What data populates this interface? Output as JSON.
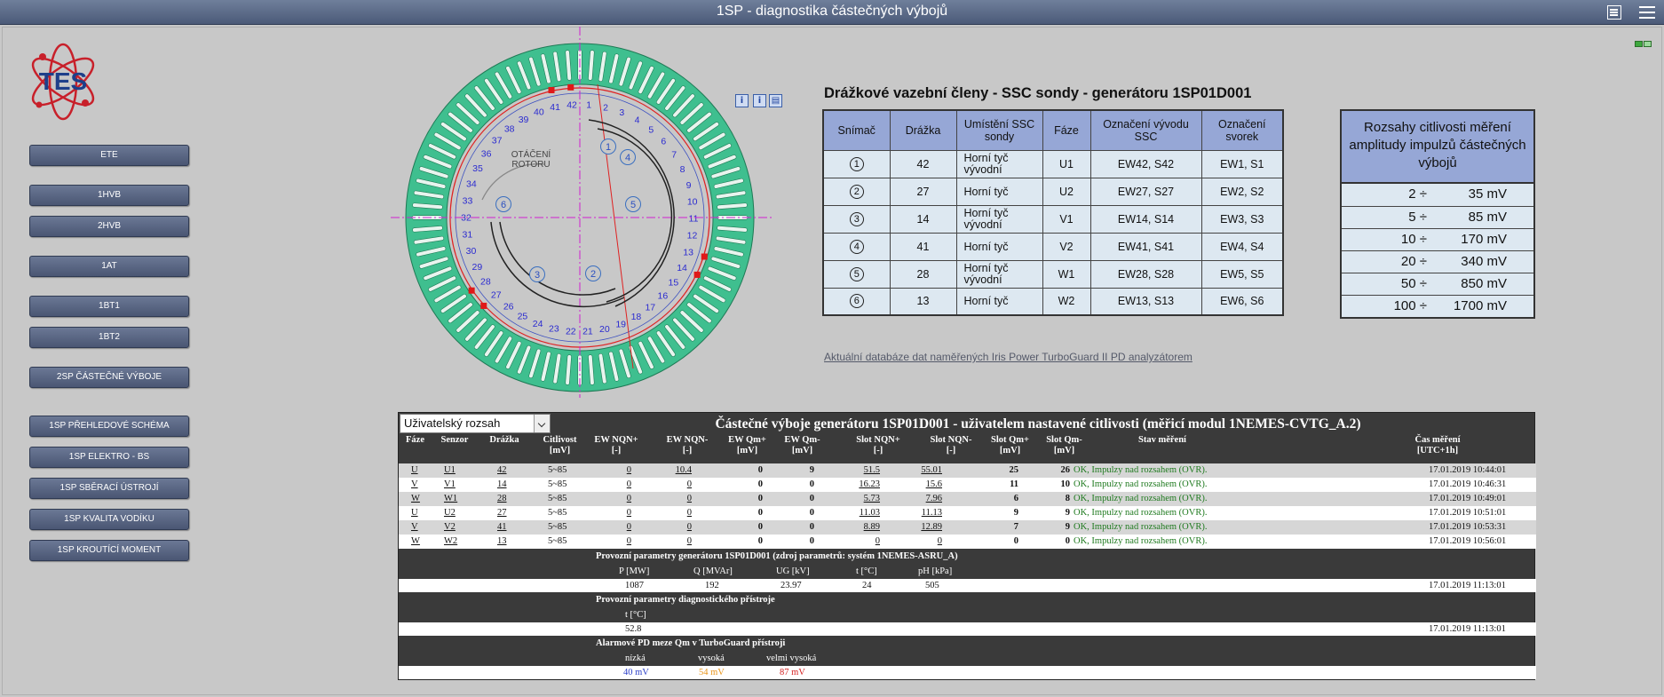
{
  "window": {
    "title": "1SP - diagnostika částečných výbojů"
  },
  "logo": {
    "text": "TES"
  },
  "nav": [
    {
      "label": "ETE"
    },
    {
      "label": "1HVB"
    },
    {
      "label": "2HVB"
    },
    {
      "label": "1AT"
    },
    {
      "label": "1BT1"
    },
    {
      "label": "1BT2"
    },
    {
      "label": "2SP ČÁSTEČNÉ VÝBOJE"
    },
    {
      "label": "1SP PŘEHLEDOVÉ SCHÉMA"
    },
    {
      "label": "1SP ELEKTRO - BS"
    },
    {
      "label": "1SP SBĚRACÍ ÚSTROJÍ"
    },
    {
      "label": "1SP KVALITA VODÍKU"
    },
    {
      "label": "1SP KROUTÍCÍ MOMENT"
    }
  ],
  "diagram": {
    "rotation_label_1": "OTÁČENÍ",
    "rotation_label_2": "ROTORU",
    "slot_count": 42,
    "sensors": [
      {
        "id": "1",
        "slot": 42
      },
      {
        "id": "2",
        "slot": 27
      },
      {
        "id": "3",
        "slot": 14
      },
      {
        "id": "4",
        "slot": 41
      },
      {
        "id": "5",
        "slot": 28
      },
      {
        "id": "6",
        "slot": 13
      }
    ],
    "info_buttons": [
      "i",
      "i",
      "▤"
    ]
  },
  "ssc": {
    "title": "Drážkové vazební členy - SSC sondy - generátoru 1SP01D001",
    "headers": [
      "Snímač",
      "Drážka",
      "Umístění SSC sondy",
      "Fáze",
      "Označení vývodu SSC",
      "Označení svorek"
    ],
    "rows": [
      {
        "sensor": "1",
        "slot": "42",
        "location": "Horní tyč vývodní",
        "phase": "U1",
        "lead": "EW42, S42",
        "terminal": "EW1, S1"
      },
      {
        "sensor": "2",
        "slot": "27",
        "location": "Horní tyč",
        "phase": "U2",
        "lead": "EW27, S27",
        "terminal": "EW2, S2"
      },
      {
        "sensor": "3",
        "slot": "14",
        "location": "Horní tyč vývodní",
        "phase": "V1",
        "lead": "EW14, S14",
        "terminal": "EW3, S3"
      },
      {
        "sensor": "4",
        "slot": "41",
        "location": "Horní tyč",
        "phase": "V2",
        "lead": "EW41, S41",
        "terminal": "EW4, S4"
      },
      {
        "sensor": "5",
        "slot": "28",
        "location": "Horní tyč vývodní",
        "phase": "W1",
        "lead": "EW28, S28",
        "terminal": "EW5, S5"
      },
      {
        "sensor": "6",
        "slot": "13",
        "location": "Horní tyč",
        "phase": "W2",
        "lead": "EW13, S13",
        "terminal": "EW6, S6"
      }
    ]
  },
  "ranges": {
    "header": "Rozsahy citlivosti měření amplitudy impulzů částečných výbojů",
    "rows": [
      {
        "from": "2 ÷",
        "to": "35 mV"
      },
      {
        "from": "5 ÷",
        "to": "85 mV"
      },
      {
        "from": "10 ÷",
        "to": "170 mV"
      },
      {
        "from": "20 ÷",
        "to": "340 mV"
      },
      {
        "from": "50 ÷",
        "to": "850 mV"
      },
      {
        "from": "100 ÷",
        "to": "1700 mV"
      }
    ]
  },
  "db_link": "Aktuální databáze dat naměřených Iris Power TurboGuard II PD analyzátorem",
  "measure": {
    "select_value": "Uživatelský rozsah",
    "title": "Částečné výboje generátoru 1SP01D001 - uživatelem nastavené citlivosti (měřicí modul 1NEMES-CVTG_A.2)",
    "headers": [
      {
        "l1": "Fáze",
        "l2": ""
      },
      {
        "l1": "Senzor",
        "l2": ""
      },
      {
        "l1": "Drážka",
        "l2": ""
      },
      {
        "l1": "Citlivost",
        "l2": "[mV]"
      },
      {
        "l1": "EW NQN+",
        "l2": "[-]"
      },
      {
        "l1": "EW NQN-",
        "l2": "[-]"
      },
      {
        "l1": "EW Qm+",
        "l2": "[mV]"
      },
      {
        "l1": "EW Qm-",
        "l2": "[mV]"
      },
      {
        "l1": "Slot NQN+",
        "l2": "[-]"
      },
      {
        "l1": "Slot NQN-",
        "l2": "[-]"
      },
      {
        "l1": "Slot Qm+",
        "l2": "[mV]"
      },
      {
        "l1": "Slot Qm-",
        "l2": "[mV]"
      },
      {
        "l1": "Stav měření",
        "l2": ""
      },
      {
        "l1": "Čas měření",
        "l2": "[UTC+1h]"
      }
    ],
    "rows": [
      {
        "phase": "U",
        "sensor": "U1",
        "slot": "42",
        "sens": "5~85",
        "ewp": "0",
        "ewn": "10.4",
        "ewqp": "0",
        "ewqn": "9",
        "snp": "51.5",
        "snn": "55.01",
        "sqp": "25",
        "sqn": "26",
        "status": "OK, Impulzy nad rozsahem (OVR).",
        "time": "17.01.2019 10:44:01"
      },
      {
        "phase": "V",
        "sensor": "V1",
        "slot": "14",
        "sens": "5~85",
        "ewp": "0",
        "ewn": "0",
        "ewqp": "0",
        "ewqn": "0",
        "snp": "16.23",
        "snn": "15.6",
        "sqp": "11",
        "sqn": "10",
        "status": "OK, Impulzy nad rozsahem (OVR).",
        "time": "17.01.2019 10:46:31"
      },
      {
        "phase": "W",
        "sensor": "W1",
        "slot": "28",
        "sens": "5~85",
        "ewp": "0",
        "ewn": "0",
        "ewqp": "0",
        "ewqn": "0",
        "snp": "5.73",
        "snn": "7.96",
        "sqp": "6",
        "sqn": "8",
        "status": "OK, Impulzy nad rozsahem (OVR).",
        "time": "17.01.2019 10:49:01"
      },
      {
        "phase": "U",
        "sensor": "U2",
        "slot": "27",
        "sens": "5~85",
        "ewp": "0",
        "ewn": "0",
        "ewqp": "0",
        "ewqn": "0",
        "snp": "11.03",
        "snn": "11.13",
        "sqp": "9",
        "sqn": "9",
        "status": "OK, Impulzy nad rozsahem (OVR).",
        "time": "17.01.2019 10:51:01"
      },
      {
        "phase": "V",
        "sensor": "V2",
        "slot": "41",
        "sens": "5~85",
        "ewp": "0",
        "ewn": "0",
        "ewqp": "0",
        "ewqn": "0",
        "snp": "8.89",
        "snn": "12.89",
        "sqp": "7",
        "sqn": "9",
        "status": "OK, Impulzy nad rozsahem (OVR).",
        "time": "17.01.2019 10:53:31"
      },
      {
        "phase": "W",
        "sensor": "W2",
        "slot": "13",
        "sens": "5~85",
        "ewp": "0",
        "ewn": "0",
        "ewqp": "0",
        "ewqn": "0",
        "snp": "0",
        "snn": "0",
        "sqp": "0",
        "sqn": "0",
        "status": "OK, Impulzy nad rozsahem (OVR).",
        "time": "17.01.2019 10:56:01"
      }
    ],
    "gen_params": {
      "title": "Provozní parametry generátoru 1SP01D001 (zdroj parametrů: systém 1NEMES-ASRU_A)",
      "labels": [
        "P [MW]",
        "Q [MVAr]",
        "UG [kV]",
        "t [°C]",
        "pH [kPa]"
      ],
      "values": [
        "1087",
        "192",
        "23.97",
        "24",
        "505"
      ],
      "time": "17.01.2019 11:13:01"
    },
    "diag_params": {
      "title": "Provozní parametry diagnostického přístroje",
      "label": "t [°C]",
      "value": "52.8",
      "time": "17.01.2019 11:13:01"
    },
    "alarm": {
      "title": "Alarmové PD meze Qm v TurboGuard přístroji",
      "labels": [
        "nízká",
        "vysoká",
        "velmi vysoká"
      ],
      "values": [
        "40 mV",
        "54 mV",
        "87 mV"
      ],
      "colors": [
        "#2a3ec8",
        "#e8941a",
        "#d42020"
      ]
    }
  }
}
